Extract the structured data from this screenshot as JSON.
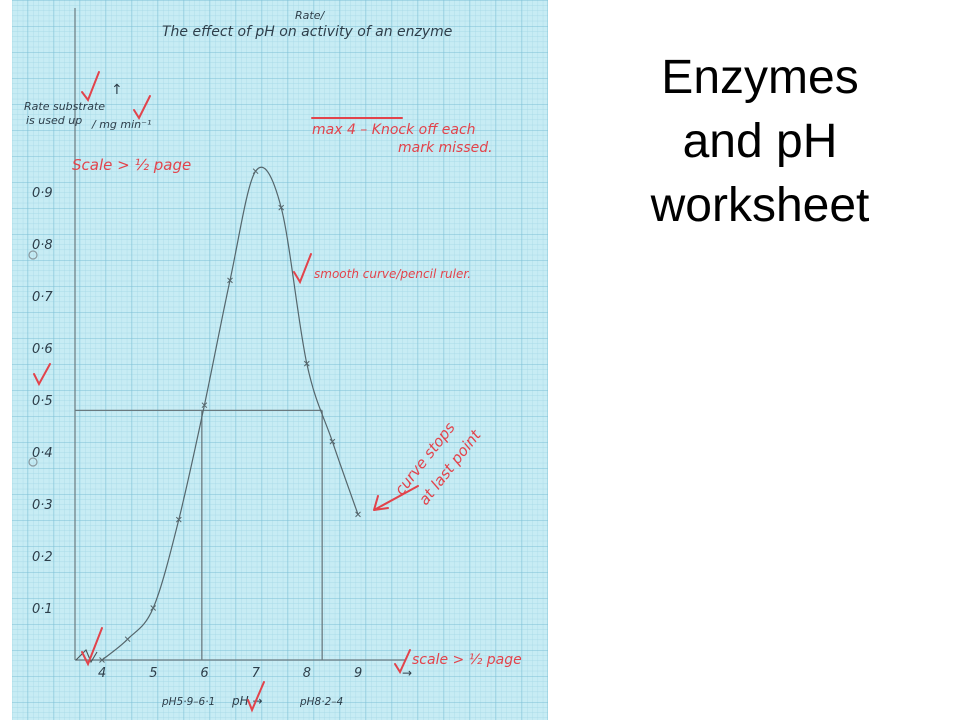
{
  "slide": {
    "title_lines": [
      "Enzymes",
      "and pH",
      "worksheet"
    ]
  },
  "chart_data": {
    "type": "line",
    "title": "The effect of pH on activity of an enzyme",
    "title_insert": "Rate/",
    "ylabel": [
      "Rate substrate",
      "is used up",
      "/ mg min⁻¹"
    ],
    "xlabel": "pH",
    "x_ticks": [
      "4",
      "5",
      "6",
      "7",
      "8",
      "9"
    ],
    "y_ticks": [
      "0·1",
      "0·2",
      "0·3",
      "0·4",
      "0·5",
      "0·6",
      "0·7",
      "0·8",
      "0·9"
    ],
    "xlim": [
      3.5,
      9.6
    ],
    "ylim": [
      0,
      1.0
    ],
    "grid": true,
    "series": [
      {
        "x": [
          4.0,
          4.5,
          5.0,
          5.5,
          6.0,
          6.5,
          7.0,
          7.5,
          8.0,
          8.5,
          9.0
        ],
        "y": [
          0.0,
          0.04,
          0.1,
          0.27,
          0.49,
          0.73,
          0.94,
          0.87,
          0.57,
          0.42,
          0.28
        ]
      }
    ],
    "readoff": {
      "y": 0.48,
      "x_left": 5.95,
      "x_right": 8.3,
      "left_label": "pH5·9–6·1",
      "right_label": "pH8·2–4"
    },
    "x_arrow_label": "pH →",
    "y_arrow": "↑",
    "annotations": [
      {
        "id": "scale-y",
        "text": "Scale > ½ page"
      },
      {
        "id": "max4-a",
        "text": "max 4 –  Knock off each"
      },
      {
        "id": "max4-b",
        "text": "mark missed."
      },
      {
        "id": "smooth",
        "text": "smooth curve/pencil ruler."
      },
      {
        "id": "stops-a",
        "text": "curve stops"
      },
      {
        "id": "stops-b",
        "text": "at last point"
      },
      {
        "id": "scale-x",
        "text": "scale > ½ page"
      }
    ]
  }
}
